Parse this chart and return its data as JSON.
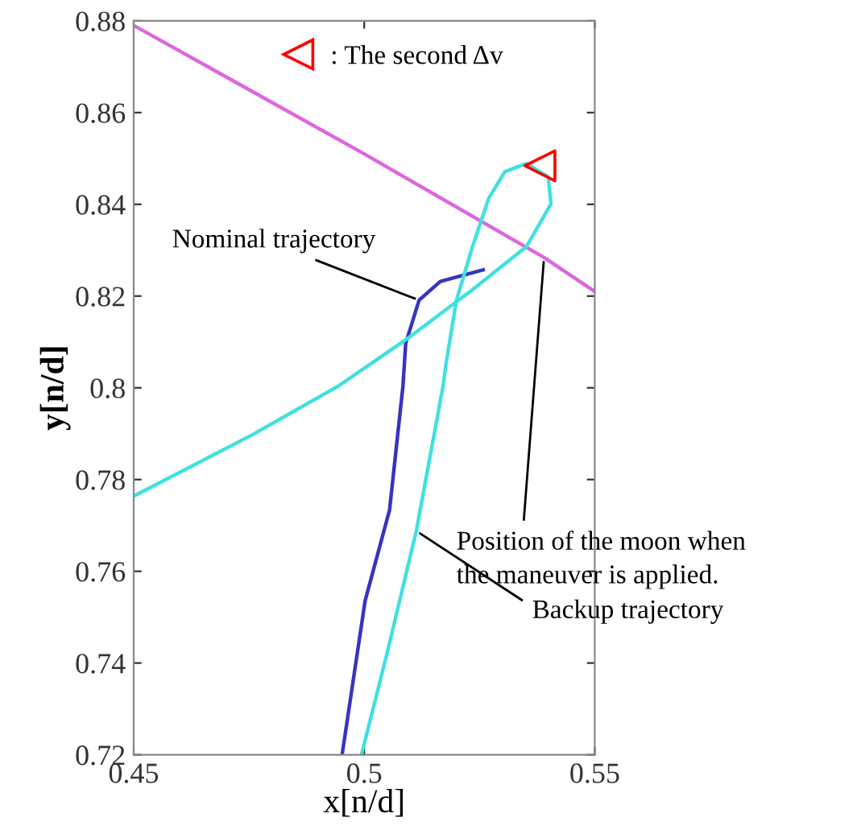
{
  "chart_data": {
    "type": "line",
    "xlabel": "x[n/d]",
    "ylabel": "y[n/d]",
    "xlim": [
      0.45,
      0.55
    ],
    "ylim": [
      0.72,
      0.88
    ],
    "xticks": [
      0.45,
      0.5,
      0.55
    ],
    "yticks": [
      0.72,
      0.74,
      0.76,
      0.78,
      0.8,
      0.82,
      0.84,
      0.86,
      0.88
    ],
    "grid": false,
    "legend": "top",
    "series": [
      {
        "color": "#dd66dd",
        "x": [
          0.45,
          0.5,
          0.539,
          0.55
        ],
        "values": [
          0.879,
          0.851,
          0.8284,
          0.821
        ]
      },
      {
        "color": "#3535c0",
        "x": [
          0.4952,
          0.5002,
          0.5055,
          0.5084,
          0.509,
          0.5119,
          0.5165,
          0.5258
        ],
        "values": [
          0.72,
          0.7536,
          0.7734,
          0.8004,
          0.8097,
          0.8191,
          0.8232,
          0.8257
        ]
      },
      {
        "color": "#40e0e0",
        "x": [
          0.45,
          0.4758,
          0.4944,
          0.5096,
          0.5235,
          0.5352,
          0.5405,
          0.5399,
          0.5352,
          0.5305,
          0.527,
          0.5235,
          0.52,
          0.5177,
          0.5171,
          0.5113,
          0.5049,
          0.4994
        ],
        "values": [
          0.7764,
          0.7898,
          0.8004,
          0.8109,
          0.8214,
          0.8308,
          0.8401,
          0.846,
          0.8489,
          0.8471,
          0.8413,
          0.8308,
          0.8191,
          0.805,
          0.8004,
          0.7688,
          0.7419,
          0.72
        ]
      },
      {
        "type": "scatter",
        "name": ": The second Δv",
        "color": "#ff0000",
        "marker": "triangle",
        "x": [
          0.5381
        ],
        "values": [
          0.8484
        ]
      }
    ],
    "annotations": [
      {
        "text": "Nominal trajectory",
        "x": 0.5119,
        "y": 0.8191
      },
      {
        "text": "Position of the moon when\nthe maneuver is applied.",
        "x": 0.539,
        "y": 0.8284
      },
      {
        "text": "Backup trajectory",
        "x": 0.5113,
        "y": 0.7688
      }
    ]
  }
}
